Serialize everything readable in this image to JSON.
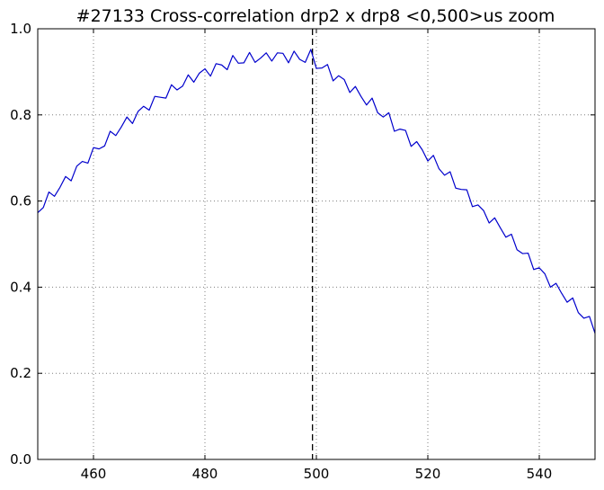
{
  "chart_data": {
    "type": "line",
    "title": "#27133 Cross-correlation drp2 x drp8 <0,500>us zoom",
    "xlabel": "",
    "ylabel": "",
    "xlim": [
      450,
      550
    ],
    "ylim": [
      0.0,
      1.0
    ],
    "xticks": [
      460,
      480,
      500,
      520,
      540
    ],
    "xtick_labels": [
      "460",
      "480",
      "500",
      "520",
      "540"
    ],
    "yticks": [
      0.0,
      0.2,
      0.4,
      0.6,
      0.8,
      1.0
    ],
    "ytick_labels": [
      "0.0",
      "0.2",
      "0.4",
      "0.6",
      "0.8",
      "1.0"
    ],
    "grid": true,
    "legend": "none",
    "colors": {
      "series": "#0000cc",
      "marker_line": "#000000",
      "grid": "#7f7f7f"
    },
    "vertical_marker": {
      "x": 499.3,
      "style": "dashed"
    },
    "series": [
      {
        "x": [
          450,
          451,
          452,
          453,
          454,
          455,
          456,
          457,
          458,
          459,
          460,
          461,
          462,
          463,
          464,
          465,
          466,
          467,
          468,
          469,
          470,
          471,
          472,
          473,
          474,
          475,
          476,
          477,
          478,
          479,
          480,
          481,
          482,
          483,
          484,
          485,
          486,
          487,
          488,
          489,
          490,
          491,
          492,
          493,
          494,
          495,
          496,
          497,
          498,
          499,
          500,
          501,
          502,
          503,
          504,
          505,
          506,
          507,
          508,
          509,
          510,
          511,
          512,
          513,
          514,
          515,
          516,
          517,
          518,
          519,
          520,
          521,
          522,
          523,
          524,
          525,
          526,
          527,
          528,
          529,
          530,
          531,
          532,
          533,
          534,
          535,
          536,
          537,
          538,
          539,
          540,
          541,
          542,
          543,
          544,
          545,
          546,
          547,
          548,
          549,
          550
        ],
        "values": [
          0.573,
          0.585,
          0.621,
          0.611,
          0.632,
          0.657,
          0.647,
          0.681,
          0.692,
          0.688,
          0.724,
          0.721,
          0.728,
          0.762,
          0.752,
          0.772,
          0.795,
          0.78,
          0.808,
          0.82,
          0.811,
          0.843,
          0.841,
          0.839,
          0.87,
          0.858,
          0.867,
          0.893,
          0.876,
          0.897,
          0.907,
          0.89,
          0.919,
          0.916,
          0.905,
          0.938,
          0.92,
          0.921,
          0.945,
          0.922,
          0.932,
          0.944,
          0.925,
          0.944,
          0.943,
          0.921,
          0.948,
          0.929,
          0.922,
          0.952,
          0.908,
          0.909,
          0.917,
          0.879,
          0.891,
          0.882,
          0.852,
          0.866,
          0.843,
          0.823,
          0.839,
          0.805,
          0.795,
          0.805,
          0.762,
          0.767,
          0.764,
          0.727,
          0.738,
          0.719,
          0.693,
          0.706,
          0.675,
          0.66,
          0.668,
          0.63,
          0.627,
          0.626,
          0.587,
          0.591,
          0.578,
          0.549,
          0.561,
          0.538,
          0.516,
          0.523,
          0.487,
          0.478,
          0.479,
          0.441,
          0.445,
          0.431,
          0.4,
          0.409,
          0.386,
          0.365,
          0.375,
          0.341,
          0.328,
          0.332,
          0.293
        ]
      }
    ]
  }
}
